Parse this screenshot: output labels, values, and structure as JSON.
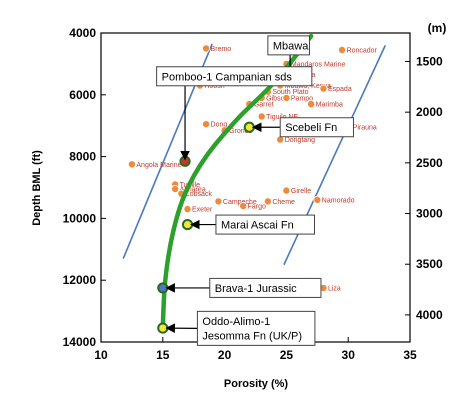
{
  "chart_data": {
    "type": "scatter",
    "title": "",
    "xlabel": "Porosity (%)",
    "ylabel": "Depth BML (ft)",
    "y2label": "(m)",
    "xlim": [
      10,
      35
    ],
    "ylim": [
      4000,
      14000
    ],
    "x_ticks": [
      "10",
      "15",
      "20",
      "25",
      "30",
      "35"
    ],
    "y_ticks": [
      "4000",
      "6000",
      "8000",
      "10000",
      "12000",
      "14000"
    ],
    "y2_ticks": [
      "1500",
      "2000",
      "2500",
      "3000",
      "3500",
      "4000"
    ],
    "y2_tick_depths_ft": [
      4921,
      6562,
      8202,
      9843,
      11483,
      13123
    ],
    "colors": {
      "points": "#ef8a3c",
      "labels": "#c0392b",
      "trend": "#2ca02c",
      "bounds": "#4a78c2",
      "highlight": "#c0392b",
      "yellow_marker": "#f5e63c"
    },
    "points": [
      {
        "name": "Bremo",
        "x": 18.5,
        "y": 4500
      },
      {
        "name": "Roncador",
        "x": 29.5,
        "y": 4550
      },
      {
        "name": "Mandaros Marine",
        "x": 25.0,
        "y": 5000
      },
      {
        "name": "Ceiba",
        "x": 25.5,
        "y": 5350
      },
      {
        "name": "Hoosh",
        "x": 18.0,
        "y": 5700
      },
      {
        "name": "Gonelle",
        "x": 20.0,
        "y": 5600
      },
      {
        "name": "Mbawa, Kenya",
        "x": 24.5,
        "y": 5700
      },
      {
        "name": "Espada",
        "x": 28.0,
        "y": 5800
      },
      {
        "name": "South Plato",
        "x": 23.5,
        "y": 5900
      },
      {
        "name": "Gibson",
        "x": 23.0,
        "y": 6100
      },
      {
        "name": "Pampo",
        "x": 25.0,
        "y": 6100
      },
      {
        "name": "Garret",
        "x": 22.0,
        "y": 6300
      },
      {
        "name": "Marimba",
        "x": 27.0,
        "y": 6300
      },
      {
        "name": "Tiguilo NE",
        "x": 23.0,
        "y": 6700
      },
      {
        "name": "Dong",
        "x": 18.5,
        "y": 6950
      },
      {
        "name": "Gronos",
        "x": 20.0,
        "y": 7150
      },
      {
        "name": "Pirauna",
        "x": 30.0,
        "y": 7050
      },
      {
        "name": "Dongtang",
        "x": 24.5,
        "y": 7450
      },
      {
        "name": "Angola Marine",
        "x": 12.5,
        "y": 8250
      },
      {
        "name": "Tupille",
        "x": 16.0,
        "y": 8900
      },
      {
        "name": "Almarea",
        "x": 16.0,
        "y": 9050
      },
      {
        "name": "Lobsack",
        "x": 16.5,
        "y": 9200
      },
      {
        "name": "Girelle",
        "x": 25.0,
        "y": 9100
      },
      {
        "name": "Namorado",
        "x": 27.5,
        "y": 9400
      },
      {
        "name": "Campeche",
        "x": 19.5,
        "y": 9450
      },
      {
        "name": "Cheme",
        "x": 23.5,
        "y": 9450
      },
      {
        "name": "Fargo",
        "x": 21.5,
        "y": 9600
      },
      {
        "name": "Exeter",
        "x": 17.0,
        "y": 9700
      },
      {
        "name": "Liza",
        "x": 28.0,
        "y": 12250
      }
    ],
    "highlights": [
      {
        "x": 16.8,
        "y": 8150,
        "color": "#c0392b"
      },
      {
        "x": 22.0,
        "y": 7050,
        "color": "#f5e63c"
      },
      {
        "x": 17.0,
        "y": 10200,
        "color": "#f5e63c"
      },
      {
        "x": 15.0,
        "y": 12250,
        "color": "#4a78c2"
      },
      {
        "x": 15.0,
        "y": 13550,
        "color": "#f5e63c"
      }
    ],
    "trend_line": [
      {
        "x": 15.0,
        "y": 13500
      },
      {
        "x": 15.2,
        "y": 12000
      },
      {
        "x": 15.8,
        "y": 10500
      },
      {
        "x": 16.8,
        "y": 9200
      },
      {
        "x": 18.5,
        "y": 8000
      },
      {
        "x": 21.0,
        "y": 6800
      },
      {
        "x": 24.0,
        "y": 5600
      },
      {
        "x": 27.0,
        "y": 4100
      }
    ],
    "bound_left": [
      {
        "x": 11.8,
        "y": 11300
      },
      {
        "x": 19.0,
        "y": 4350
      }
    ],
    "bound_right": [
      {
        "x": 24.8,
        "y": 11500
      },
      {
        "x": 33.0,
        "y": 4400
      }
    ],
    "callouts": [
      {
        "text": "Mbawa",
        "box_x": 23.5,
        "box_y": 4400,
        "to_x": 25.3,
        "to_y": 5600,
        "sub": ""
      },
      {
        "text": "Pomboo-1 Campanian sds",
        "box_x": 14.5,
        "box_y": 5400,
        "to_x": 16.8,
        "to_y": 8050,
        "sub": ""
      },
      {
        "text": "Scebeli Fn",
        "box_x": 24.5,
        "box_y": 7050,
        "to_x": 22.4,
        "to_y": 7050,
        "sub": ""
      },
      {
        "text": "Marai Ascai Fn",
        "box_x": 19.3,
        "box_y": 10200,
        "to_x": 17.4,
        "to_y": 10200,
        "sub": ""
      },
      {
        "text": "Brava-1 Jurassic",
        "box_x": 18.8,
        "box_y": 12250,
        "to_x": 15.4,
        "to_y": 12250,
        "sub": ""
      },
      {
        "text": "Oddo-Alimo-1",
        "box_x": 17.8,
        "box_y": 13300,
        "to_x": 15.4,
        "to_y": 13550,
        "sub": "Jesomma Fn (UK/P)"
      }
    ]
  }
}
